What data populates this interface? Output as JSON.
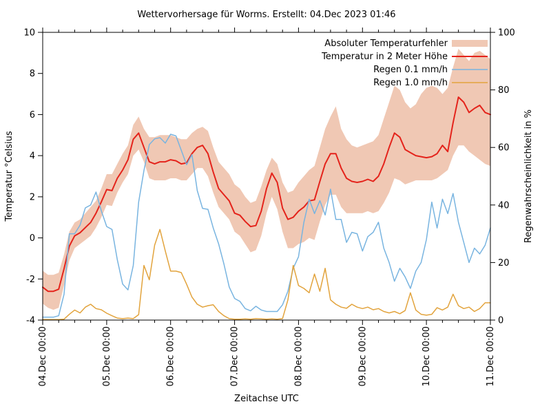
{
  "chart_data": {
    "type": "line",
    "title": "Wettervorhersage für Worms. Erstellt: 04.Dec 2023 01:46",
    "xlabel": "Zeitachse UTC",
    "ylabel_left": "Temperatur °Celsius",
    "ylabel_right": "Regenwahrscheinlichkeit in %",
    "ylim_left": [
      -4,
      10
    ],
    "ylim_right": [
      0,
      100
    ],
    "y_ticks_left": [
      -4,
      -2,
      0,
      2,
      4,
      6,
      8,
      10
    ],
    "y_ticks_right": [
      0,
      20,
      40,
      60,
      80,
      100
    ],
    "grid": false,
    "legend_position": "top-right-inside",
    "x_range_hours": [
      0,
      168
    ],
    "hour_step": 2,
    "minor_x_tick_step_hours": 6,
    "x_tick_hours": [
      0,
      24,
      48,
      72,
      96,
      120,
      144,
      168
    ],
    "x_tick_labels": [
      "04.Dec 00:00",
      "05.Dec 00:00",
      "06.Dec 00:00",
      "07.Dec 00:00",
      "08.Dec 00:00",
      "09.Dec 00:00",
      "10.Dec 00:00",
      "11.Dec 00:00"
    ],
    "series": [
      {
        "name": "Absoluter Temperaturfehler",
        "type": "band",
        "axis": "left",
        "color": "#f0c8b4",
        "low": [
          -3.2,
          -3.4,
          -3.5,
          -3.4,
          -2.3,
          -1.1,
          -0.5,
          -0.3,
          -0.1,
          0.1,
          0.5,
          1.0,
          1.6,
          1.55,
          2.2,
          2.7,
          3.1,
          4.0,
          4.3,
          3.7,
          2.9,
          2.8,
          2.8,
          2.8,
          2.9,
          2.9,
          2.8,
          2.8,
          3.1,
          3.4,
          3.4,
          3.0,
          2.2,
          1.5,
          1.2,
          0.9,
          0.3,
          0.1,
          -0.3,
          -0.7,
          -0.6,
          0.1,
          1.2,
          2.0,
          1.4,
          0.3,
          -0.5,
          -0.5,
          -0.3,
          -0.2,
          0.0,
          -0.1,
          0.8,
          1.6,
          2.1,
          2.1,
          1.5,
          1.2,
          1.2,
          1.2,
          1.2,
          1.3,
          1.2,
          1.3,
          1.7,
          2.2,
          2.9,
          2.8,
          2.6,
          2.7,
          2.8,
          2.8,
          2.8,
          2.8,
          2.9,
          3.1,
          3.3,
          4.0,
          4.5,
          4.5,
          4.2,
          4.0,
          3.8,
          3.6,
          3.5
        ],
        "high": [
          -1.6,
          -1.8,
          -1.8,
          -1.7,
          -0.8,
          0.3,
          0.75,
          0.9,
          1.2,
          1.5,
          1.8,
          2.4,
          3.1,
          3.1,
          3.6,
          4.1,
          4.5,
          5.5,
          5.9,
          5.3,
          4.9,
          4.9,
          5.0,
          5.0,
          5.0,
          4.9,
          4.8,
          4.8,
          5.1,
          5.3,
          5.4,
          5.2,
          4.4,
          3.7,
          3.4,
          3.1,
          2.6,
          2.4,
          2.0,
          1.7,
          1.8,
          2.5,
          3.3,
          3.9,
          3.6,
          2.7,
          2.2,
          2.3,
          2.7,
          3.0,
          3.3,
          3.5,
          4.4,
          5.3,
          5.9,
          6.4,
          5.3,
          4.8,
          4.5,
          4.4,
          4.5,
          4.6,
          4.7,
          5.0,
          5.8,
          6.6,
          7.4,
          7.2,
          6.6,
          6.3,
          6.5,
          7.0,
          7.3,
          7.4,
          7.3,
          7.0,
          7.3,
          8.3,
          9.2,
          8.9,
          8.6,
          9.0,
          9.1,
          8.9,
          8.7
        ]
      },
      {
        "name": "Temperatur in 2 Meter Höhe",
        "type": "line",
        "axis": "left",
        "color": "#e4231b",
        "values": [
          -2.4,
          -2.6,
          -2.6,
          -2.5,
          -1.5,
          -0.4,
          0.1,
          0.25,
          0.5,
          0.75,
          1.2,
          1.75,
          2.35,
          2.3,
          2.9,
          3.3,
          3.8,
          4.8,
          5.1,
          4.4,
          3.7,
          3.6,
          3.7,
          3.7,
          3.8,
          3.75,
          3.6,
          3.65,
          4.1,
          4.4,
          4.5,
          4.1,
          3.2,
          2.4,
          2.1,
          1.8,
          1.2,
          1.1,
          0.8,
          0.55,
          0.6,
          1.3,
          2.4,
          3.15,
          2.7,
          1.45,
          0.9,
          1.0,
          1.3,
          1.5,
          1.8,
          1.85,
          2.75,
          3.6,
          4.1,
          4.1,
          3.4,
          2.9,
          2.75,
          2.7,
          2.75,
          2.85,
          2.75,
          3.0,
          3.6,
          4.4,
          5.1,
          4.9,
          4.3,
          4.15,
          4.0,
          3.95,
          3.9,
          3.95,
          4.1,
          4.5,
          4.2,
          5.6,
          6.85,
          6.6,
          6.1,
          6.3,
          6.45,
          6.1,
          6.0
        ]
      },
      {
        "name": "Regen 0.1 mm/h",
        "type": "line",
        "axis": "right",
        "color": "#78b4e0",
        "values": [
          1,
          1,
          1,
          1.5,
          9,
          30,
          30,
          33,
          39,
          40,
          44.5,
          38,
          32.5,
          31.5,
          21,
          12.5,
          10.5,
          19,
          41,
          52,
          61,
          63,
          63.4,
          61.5,
          64.6,
          64,
          59,
          54,
          57.5,
          45,
          38.8,
          38.5,
          32,
          26.5,
          19.5,
          11.5,
          7.5,
          6.5,
          4,
          3.2,
          4.8,
          3.5,
          3,
          3,
          3,
          5.3,
          10,
          18,
          22,
          34,
          42,
          37,
          41.5,
          36.5,
          45.5,
          35,
          35,
          27,
          30.5,
          30,
          24,
          29,
          30.5,
          34,
          25,
          20,
          13.5,
          18,
          15,
          11,
          17,
          20,
          28,
          41,
          32,
          42,
          37,
          44,
          34,
          27,
          20,
          25,
          23,
          26,
          32
        ]
      },
      {
        "name": "Regen 1.0 mm/h",
        "type": "line",
        "axis": "right",
        "color": "#e2a33c",
        "values": [
          0.2,
          0.2,
          0.2,
          0.2,
          0.3,
          2,
          3.5,
          2.5,
          4.5,
          5.5,
          4,
          3.6,
          2.4,
          1.5,
          0.7,
          0.5,
          0.7,
          0.5,
          1.9,
          19,
          14,
          26,
          31.5,
          24,
          17,
          17,
          16.5,
          12.5,
          8,
          5.5,
          4.5,
          5,
          5.3,
          3,
          1.5,
          0.5,
          0.3,
          0.3,
          0.4,
          0.3,
          0.5,
          0.4,
          0.3,
          0.4,
          0.3,
          0.5,
          7,
          19,
          12,
          11,
          9.5,
          16,
          10,
          18,
          7,
          5.5,
          4.5,
          4.1,
          5.5,
          4.5,
          4,
          4.5,
          3.6,
          4,
          3,
          2.5,
          3,
          2.2,
          3.3,
          9.5,
          3.5,
          2,
          1.7,
          2,
          4.3,
          3.5,
          4.5,
          9,
          5,
          4,
          4.5,
          3,
          4,
          6,
          6
        ]
      }
    ]
  }
}
